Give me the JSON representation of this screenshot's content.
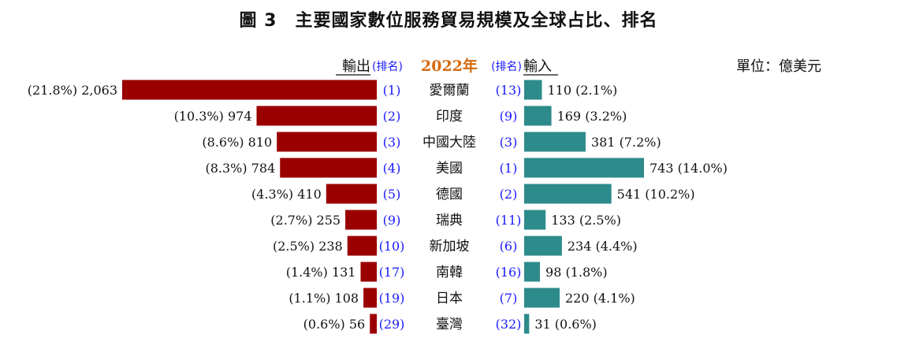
{
  "title": "圖 3　主要國家數位服務貿易規模及全球占比、排名",
  "header": {
    "export_label": "輸出",
    "rank_label_left": "(排名)",
    "year": "2022年",
    "rank_label_right": "(排名)",
    "import_label": "輸入",
    "unit": "單位：億美元"
  },
  "colors": {
    "export_bar": "#9b0000",
    "import_bar": "#2e8b8b",
    "rank_text": "#1a1aff",
    "year_text": "#d46a10"
  },
  "chart_data": {
    "type": "bar",
    "layout": "butterfly",
    "categories": [
      "愛爾蘭",
      "印度",
      "中國大陸",
      "美國",
      "德國",
      "瑞典",
      "新加坡",
      "南韓",
      "日本",
      "臺灣"
    ],
    "series": [
      {
        "name": "輸出",
        "values": [
          2063,
          974,
          810,
          784,
          410,
          255,
          238,
          131,
          108,
          56
        ],
        "shares": [
          "21.8%",
          "10.3%",
          "8.6%",
          "8.3%",
          "4.3%",
          "2.7%",
          "2.5%",
          "1.4%",
          "1.1%",
          "0.6%"
        ],
        "ranks": [
          1,
          2,
          3,
          4,
          5,
          9,
          10,
          17,
          19,
          29
        ],
        "labels": [
          "(21.8%) 2,063",
          "(10.3%) 974",
          "(8.6%) 810",
          "(8.3%) 784",
          "(4.3%) 410",
          "(2.7%) 255",
          "(2.5%) 238",
          "(1.4%) 131",
          "(1.1%) 108",
          "(0.6%) 56"
        ],
        "rank_labels": [
          "(1)",
          "(2)",
          "(3)",
          "(4)",
          "(5)",
          "(9)",
          "(10)",
          "(17)",
          "(19)",
          "(29)"
        ]
      },
      {
        "name": "輸入",
        "values": [
          110,
          169,
          381,
          743,
          541,
          133,
          234,
          98,
          220,
          31
        ],
        "shares": [
          "2.1%",
          "3.2%",
          "7.2%",
          "14.0%",
          "10.2%",
          "2.5%",
          "4.4%",
          "1.8%",
          "4.1%",
          "0.6%"
        ],
        "ranks": [
          13,
          9,
          3,
          1,
          2,
          11,
          6,
          16,
          7,
          32
        ],
        "labels": [
          "110 (2.1%)",
          "169 (3.2%)",
          "381 (7.2%)",
          "743 (14.0%)",
          "541 (10.2%)",
          "133 (2.5%)",
          "234 (4.4%)",
          "98 (1.8%)",
          "220 (4.1%)",
          "31 (0.6%)"
        ],
        "rank_labels": [
          "(13)",
          "(9)",
          "(3)",
          "(1)",
          "(2)",
          "(11)",
          "(6)",
          "(16)",
          "(7)",
          "(32)"
        ]
      }
    ],
    "title": "圖 3　主要國家數位服務貿易規模及全球占比、排名",
    "xlabel": "",
    "ylabel": "",
    "grid": false
  }
}
